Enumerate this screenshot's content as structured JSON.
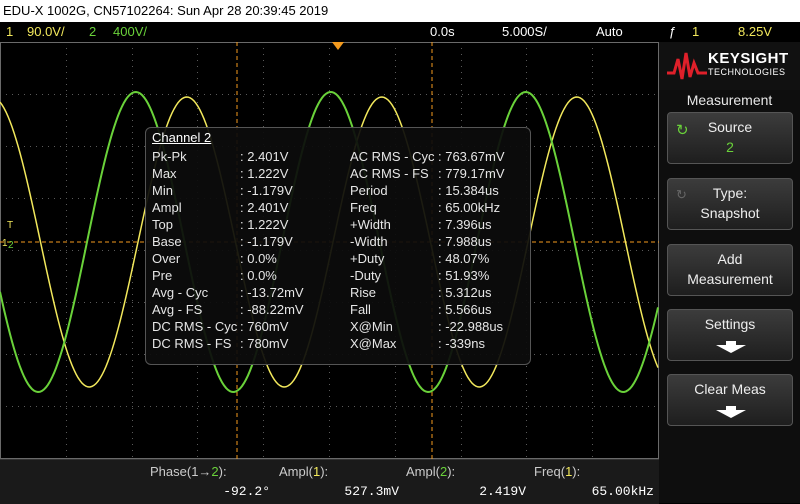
{
  "title": "EDU-X 1002G, CN57102264: Sun Apr 28 20:39:45 2019",
  "status": {
    "ch1_num": "1",
    "ch1_scale": "90.0V/",
    "ch2_num": "2",
    "ch2_scale": "400V/",
    "time_offset": "0.0s",
    "time_scale": "5.000S/",
    "trigger_mode": "Auto",
    "trig_src": "1",
    "trig_level": "8.25V"
  },
  "panel": {
    "brand": "KEYSIGHT",
    "brand_sub": "TECHNOLOGIES",
    "title": "Measurement",
    "source_label": "Source",
    "source_value": "2",
    "type_label": "Type:",
    "type_value": "Snapshot",
    "add_label1": "Add",
    "add_label2": "Measurement",
    "settings_label": "Settings",
    "clear_label": "Clear Meas"
  },
  "popup": {
    "title": "Channel 2",
    "left": [
      {
        "name": "Pk-Pk",
        "value": ": 2.401V"
      },
      {
        "name": "Max",
        "value": ": 1.222V"
      },
      {
        "name": "Min",
        "value": ": -1.179V"
      },
      {
        "name": "Ampl",
        "value": ": 2.401V"
      },
      {
        "name": "Top",
        "value": ": 1.222V"
      },
      {
        "name": "Base",
        "value": ": -1.179V"
      },
      {
        "name": "Over",
        "value": ": 0.0%"
      },
      {
        "name": "Pre",
        "value": ": 0.0%"
      },
      {
        "name": "Avg - Cyc",
        "value": ": -13.72mV"
      },
      {
        "name": "Avg - FS",
        "value": ": -88.22mV"
      },
      {
        "name": "DC RMS - Cyc",
        "value": ": 760mV"
      },
      {
        "name": "DC RMS - FS",
        "value": ": 780mV"
      }
    ],
    "right": [
      {
        "name": "AC RMS - Cyc",
        "value": ": 763.67mV"
      },
      {
        "name": "AC RMS - FS",
        "value": ": 779.17mV"
      },
      {
        "name": "Period",
        "value": ": 15.384us"
      },
      {
        "name": "Freq",
        "value": ": 65.00kHz"
      },
      {
        "name": "+Width",
        "value": ": 7.396us"
      },
      {
        "name": "-Width",
        "value": ": 7.988us"
      },
      {
        "name": "+Duty",
        "value": ": 48.07%"
      },
      {
        "name": "-Duty",
        "value": ": 51.93%"
      },
      {
        "name": "Rise",
        "value": ": 5.312us"
      },
      {
        "name": "Fall",
        "value": ": 5.566us"
      },
      {
        "name": "X@Min",
        "value": ": -22.988us"
      },
      {
        "name": "X@Max",
        "value": ": -339ns"
      }
    ]
  },
  "measurements": [
    {
      "label_a": "Phase(1",
      "arrow": "→",
      "label_ch": "2",
      "label_b": "):",
      "value": "-92.2°"
    },
    {
      "label_a": "Ampl(",
      "label_ch": "1",
      "label_b": "):",
      "value": "527.3mV"
    },
    {
      "label_a": "Ampl(",
      "label_ch": "2",
      "label_b": "):",
      "value": "2.419V"
    },
    {
      "label_a": "Freq(",
      "label_ch": "1",
      "label_b": "):",
      "value": "65.00kHz"
    }
  ],
  "colors": {
    "ch1": "#f2e85c",
    "ch2": "#6ad23a",
    "trigger": "#f39a1e"
  }
}
